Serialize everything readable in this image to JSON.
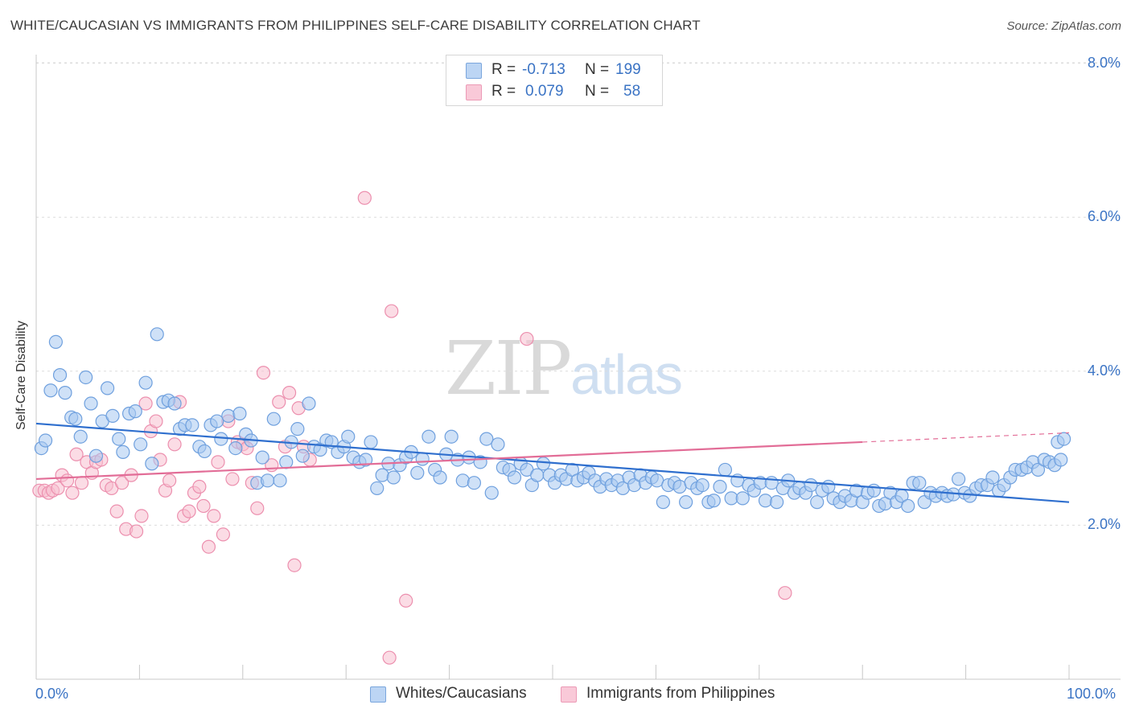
{
  "title": "WHITE/CAUCASIAN VS IMMIGRANTS FROM PHILIPPINES SELF-CARE DISABILITY CORRELATION CHART",
  "source": "Source: ZipAtlas.com",
  "watermark": {
    "part1": "ZIP",
    "part2": "atlas"
  },
  "colors": {
    "blue_fill": "#a8c8f0",
    "blue_stroke": "#6fa0de",
    "blue_line": "#2f6fce",
    "pink_fill": "#f7bfd0",
    "pink_stroke": "#ec8fae",
    "pink_line": "#e26d97",
    "axis_text": "#3a73c4",
    "grid": "#dcdcdc"
  },
  "legend": {
    "rows": [
      {
        "r_label": "R =",
        "r_value": "-0.713",
        "n_label": "N =",
        "n_value": "199"
      },
      {
        "r_label": "R =",
        "r_value": "0.079",
        "n_label": "N =",
        "n_value": "58"
      }
    ]
  },
  "bottom_legend": {
    "series1": "Whites/Caucasians",
    "series2": "Immigrants from Philippines"
  },
  "chart_data": {
    "type": "scatter",
    "ylabel": "Self-Care Disability",
    "xlim": [
      0,
      100
    ],
    "ylim": [
      0,
      8.2
    ],
    "x_tick_labels": [
      "0.0%",
      "100.0%"
    ],
    "y_ticks": [
      2.0,
      4.0,
      6.0,
      8.0
    ],
    "y_tick_labels": [
      "2.0%",
      "4.0%",
      "6.0%",
      "8.0%"
    ],
    "grid": "horizontal dashed",
    "series": [
      {
        "name": "Whites/Caucasians",
        "color": "blue",
        "trend": {
          "x": [
            0,
            100
          ],
          "y": [
            3.32,
            2.3
          ]
        },
        "points": [
          [
            0.5,
            3.0
          ],
          [
            0.9,
            3.1
          ],
          [
            1.4,
            3.75
          ],
          [
            1.9,
            4.38
          ],
          [
            2.3,
            3.95
          ],
          [
            2.8,
            3.72
          ],
          [
            3.4,
            3.4
          ],
          [
            3.8,
            3.38
          ],
          [
            4.3,
            3.15
          ],
          [
            4.8,
            3.92
          ],
          [
            5.3,
            3.58
          ],
          [
            5.8,
            2.9
          ],
          [
            6.4,
            3.35
          ],
          [
            6.9,
            3.78
          ],
          [
            7.4,
            3.42
          ],
          [
            8.0,
            3.12
          ],
          [
            8.4,
            2.95
          ],
          [
            9.0,
            3.45
          ],
          [
            9.6,
            3.48
          ],
          [
            10.1,
            3.05
          ],
          [
            10.6,
            3.85
          ],
          [
            11.2,
            2.8
          ],
          [
            11.7,
            4.48
          ],
          [
            12.3,
            3.6
          ],
          [
            12.8,
            3.62
          ],
          [
            13.4,
            3.58
          ],
          [
            13.9,
            3.25
          ],
          [
            14.4,
            3.3
          ],
          [
            15.1,
            3.3
          ],
          [
            15.8,
            3.02
          ],
          [
            16.3,
            2.96
          ],
          [
            16.9,
            3.3
          ],
          [
            17.5,
            3.35
          ],
          [
            17.9,
            3.12
          ],
          [
            18.6,
            3.42
          ],
          [
            19.3,
            3.0
          ],
          [
            19.7,
            3.45
          ],
          [
            20.3,
            3.18
          ],
          [
            20.8,
            3.1
          ],
          [
            21.4,
            2.55
          ],
          [
            21.9,
            2.88
          ],
          [
            22.4,
            2.58
          ],
          [
            23.0,
            3.38
          ],
          [
            23.6,
            2.58
          ],
          [
            24.2,
            2.82
          ],
          [
            24.7,
            3.08
          ],
          [
            25.3,
            3.25
          ],
          [
            25.8,
            2.9
          ],
          [
            26.4,
            3.58
          ],
          [
            26.9,
            3.02
          ],
          [
            27.5,
            2.98
          ],
          [
            28.1,
            3.1
          ],
          [
            28.6,
            3.08
          ],
          [
            29.2,
            2.95
          ],
          [
            29.8,
            3.02
          ],
          [
            30.2,
            3.15
          ],
          [
            30.7,
            2.88
          ],
          [
            31.3,
            2.82
          ],
          [
            31.9,
            2.85
          ],
          [
            32.4,
            3.08
          ],
          [
            33.0,
            2.48
          ],
          [
            33.5,
            2.65
          ],
          [
            34.1,
            2.8
          ],
          [
            34.6,
            2.62
          ],
          [
            35.2,
            2.78
          ],
          [
            35.8,
            2.88
          ],
          [
            36.3,
            2.95
          ],
          [
            36.9,
            2.68
          ],
          [
            37.4,
            2.86
          ],
          [
            38.0,
            3.15
          ],
          [
            38.6,
            2.72
          ],
          [
            39.1,
            2.62
          ],
          [
            39.7,
            2.92
          ],
          [
            40.2,
            3.15
          ],
          [
            40.8,
            2.85
          ],
          [
            41.3,
            2.58
          ],
          [
            41.9,
            2.88
          ],
          [
            42.4,
            2.55
          ],
          [
            43.0,
            2.82
          ],
          [
            43.6,
            3.12
          ],
          [
            44.1,
            2.42
          ],
          [
            44.7,
            3.05
          ],
          [
            45.2,
            2.75
          ],
          [
            45.8,
            2.72
          ],
          [
            46.3,
            2.62
          ],
          [
            46.9,
            2.8
          ],
          [
            47.5,
            2.72
          ],
          [
            48.0,
            2.52
          ],
          [
            48.5,
            2.65
          ],
          [
            49.1,
            2.8
          ],
          [
            49.7,
            2.65
          ],
          [
            50.2,
            2.55
          ],
          [
            50.8,
            2.65
          ],
          [
            51.3,
            2.6
          ],
          [
            51.9,
            2.72
          ],
          [
            52.4,
            2.58
          ],
          [
            53.0,
            2.62
          ],
          [
            53.5,
            2.68
          ],
          [
            54.1,
            2.58
          ],
          [
            54.6,
            2.5
          ],
          [
            55.2,
            2.6
          ],
          [
            55.7,
            2.52
          ],
          [
            56.3,
            2.58
          ],
          [
            56.8,
            2.48
          ],
          [
            57.4,
            2.62
          ],
          [
            57.9,
            2.52
          ],
          [
            58.5,
            2.65
          ],
          [
            59.0,
            2.55
          ],
          [
            59.6,
            2.62
          ],
          [
            60.1,
            2.58
          ],
          [
            60.7,
            2.3
          ],
          [
            61.2,
            2.52
          ],
          [
            61.8,
            2.55
          ],
          [
            62.3,
            2.5
          ],
          [
            62.9,
            2.3
          ],
          [
            63.4,
            2.55
          ],
          [
            64.0,
            2.48
          ],
          [
            64.5,
            2.52
          ],
          [
            65.1,
            2.3
          ],
          [
            65.6,
            2.32
          ],
          [
            66.2,
            2.5
          ],
          [
            66.7,
            2.72
          ],
          [
            67.3,
            2.35
          ],
          [
            67.9,
            2.58
          ],
          [
            68.4,
            2.35
          ],
          [
            69.0,
            2.52
          ],
          [
            69.5,
            2.45
          ],
          [
            70.1,
            2.55
          ],
          [
            70.6,
            2.32
          ],
          [
            71.2,
            2.55
          ],
          [
            71.7,
            2.3
          ],
          [
            72.3,
            2.48
          ],
          [
            72.8,
            2.58
          ],
          [
            73.4,
            2.42
          ],
          [
            73.9,
            2.48
          ],
          [
            74.5,
            2.42
          ],
          [
            75.0,
            2.52
          ],
          [
            75.6,
            2.3
          ],
          [
            76.1,
            2.45
          ],
          [
            76.7,
            2.5
          ],
          [
            77.2,
            2.35
          ],
          [
            77.8,
            2.3
          ],
          [
            78.3,
            2.38
          ],
          [
            78.9,
            2.32
          ],
          [
            79.4,
            2.45
          ],
          [
            80.0,
            2.3
          ],
          [
            80.5,
            2.42
          ],
          [
            81.1,
            2.45
          ],
          [
            81.6,
            2.25
          ],
          [
            82.2,
            2.28
          ],
          [
            82.7,
            2.42
          ],
          [
            83.3,
            2.3
          ],
          [
            83.8,
            2.38
          ],
          [
            84.4,
            2.25
          ],
          [
            84.9,
            2.55
          ],
          [
            85.5,
            2.55
          ],
          [
            86.0,
            2.3
          ],
          [
            86.6,
            2.42
          ],
          [
            87.1,
            2.38
          ],
          [
            87.7,
            2.42
          ],
          [
            88.2,
            2.38
          ],
          [
            88.8,
            2.4
          ],
          [
            89.3,
            2.6
          ],
          [
            89.9,
            2.42
          ],
          [
            90.4,
            2.38
          ],
          [
            91.0,
            2.48
          ],
          [
            91.5,
            2.52
          ],
          [
            92.1,
            2.52
          ],
          [
            92.6,
            2.62
          ],
          [
            93.2,
            2.45
          ],
          [
            93.7,
            2.52
          ],
          [
            94.3,
            2.62
          ],
          [
            94.8,
            2.72
          ],
          [
            95.4,
            2.72
          ],
          [
            95.9,
            2.75
          ],
          [
            96.5,
            2.82
          ],
          [
            97.0,
            2.72
          ],
          [
            97.6,
            2.85
          ],
          [
            98.1,
            2.82
          ],
          [
            98.6,
            2.78
          ],
          [
            99.2,
            2.85
          ],
          [
            98.9,
            3.08
          ],
          [
            99.5,
            3.12
          ]
        ]
      },
      {
        "name": "Immigrants from Philippines",
        "color": "pink",
        "trend": {
          "x": [
            0,
            80
          ],
          "y": [
            2.6,
            3.08
          ]
        },
        "trend_dashed": {
          "x": [
            80,
            100
          ],
          "y": [
            3.08,
            3.2
          ]
        },
        "points": [
          [
            0.3,
            2.45
          ],
          [
            0.8,
            2.45
          ],
          [
            1.2,
            2.42
          ],
          [
            1.6,
            2.45
          ],
          [
            2.1,
            2.48
          ],
          [
            2.5,
            2.65
          ],
          [
            3.0,
            2.58
          ],
          [
            3.5,
            2.42
          ],
          [
            3.9,
            2.92
          ],
          [
            4.4,
            2.55
          ],
          [
            4.9,
            2.82
          ],
          [
            5.4,
            2.68
          ],
          [
            5.8,
            2.82
          ],
          [
            6.3,
            2.85
          ],
          [
            6.8,
            2.52
          ],
          [
            7.3,
            2.48
          ],
          [
            7.8,
            2.18
          ],
          [
            8.3,
            2.55
          ],
          [
            8.7,
            1.95
          ],
          [
            9.2,
            2.65
          ],
          [
            9.7,
            1.92
          ],
          [
            10.2,
            2.12
          ],
          [
            10.6,
            3.58
          ],
          [
            11.1,
            3.22
          ],
          [
            11.6,
            3.35
          ],
          [
            12.0,
            2.85
          ],
          [
            12.5,
            2.45
          ],
          [
            12.9,
            2.58
          ],
          [
            13.4,
            3.05
          ],
          [
            13.9,
            3.6
          ],
          [
            14.3,
            2.12
          ],
          [
            14.8,
            2.18
          ],
          [
            15.3,
            2.42
          ],
          [
            15.8,
            2.5
          ],
          [
            16.2,
            2.25
          ],
          [
            16.7,
            1.72
          ],
          [
            17.2,
            2.12
          ],
          [
            17.6,
            2.82
          ],
          [
            18.1,
            1.88
          ],
          [
            18.6,
            3.35
          ],
          [
            19.0,
            2.6
          ],
          [
            19.5,
            3.08
          ],
          [
            20.0,
            3.05
          ],
          [
            20.4,
            3.0
          ],
          [
            20.9,
            2.55
          ],
          [
            21.4,
            2.22
          ],
          [
            22.0,
            3.98
          ],
          [
            22.8,
            2.78
          ],
          [
            23.5,
            3.6
          ],
          [
            24.1,
            3.02
          ],
          [
            24.5,
            3.72
          ],
          [
            25.0,
            1.48
          ],
          [
            25.4,
            3.52
          ],
          [
            25.9,
            3.02
          ],
          [
            26.5,
            2.85
          ],
          [
            31.8,
            6.25
          ],
          [
            34.4,
            4.78
          ],
          [
            35.8,
            1.02
          ],
          [
            34.2,
            0.28
          ],
          [
            47.5,
            4.42
          ],
          [
            72.5,
            1.12
          ]
        ]
      }
    ]
  }
}
